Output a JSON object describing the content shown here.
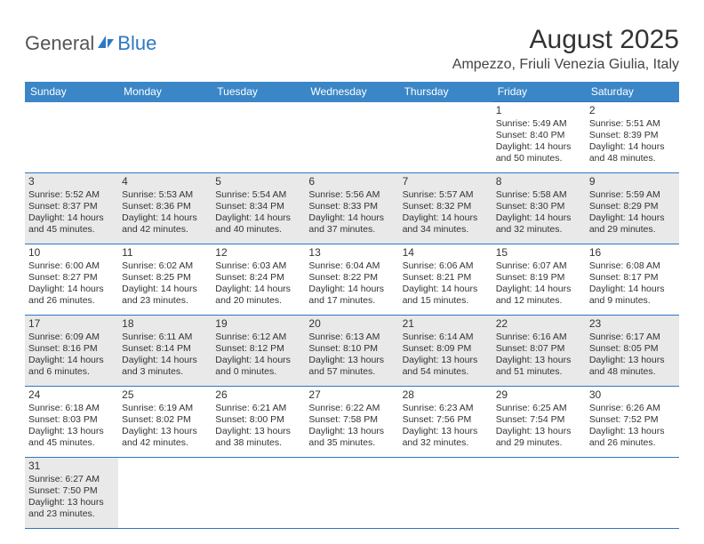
{
  "logo": {
    "general": "General",
    "blue": "Blue"
  },
  "title": "August 2025",
  "location": "Ampezzo, Friuli Venezia Giulia, Italy",
  "colors": {
    "header_bg": "#3b86c6",
    "border": "#2d78c3",
    "shade": "#e9e9e9",
    "text": "#333333"
  },
  "daynames": [
    "Sunday",
    "Monday",
    "Tuesday",
    "Wednesday",
    "Thursday",
    "Friday",
    "Saturday"
  ],
  "weeks": [
    [
      null,
      null,
      null,
      null,
      null,
      {
        "n": "1",
        "sr": "5:49 AM",
        "ss": "8:40 PM",
        "dl": "14 hours and 50 minutes."
      },
      {
        "n": "2",
        "sr": "5:51 AM",
        "ss": "8:39 PM",
        "dl": "14 hours and 48 minutes."
      }
    ],
    [
      {
        "n": "3",
        "sr": "5:52 AM",
        "ss": "8:37 PM",
        "dl": "14 hours and 45 minutes.",
        "shade": true
      },
      {
        "n": "4",
        "sr": "5:53 AM",
        "ss": "8:36 PM",
        "dl": "14 hours and 42 minutes.",
        "shade": true
      },
      {
        "n": "5",
        "sr": "5:54 AM",
        "ss": "8:34 PM",
        "dl": "14 hours and 40 minutes.",
        "shade": true
      },
      {
        "n": "6",
        "sr": "5:56 AM",
        "ss": "8:33 PM",
        "dl": "14 hours and 37 minutes.",
        "shade": true
      },
      {
        "n": "7",
        "sr": "5:57 AM",
        "ss": "8:32 PM",
        "dl": "14 hours and 34 minutes.",
        "shade": true
      },
      {
        "n": "8",
        "sr": "5:58 AM",
        "ss": "8:30 PM",
        "dl": "14 hours and 32 minutes.",
        "shade": true
      },
      {
        "n": "9",
        "sr": "5:59 AM",
        "ss": "8:29 PM",
        "dl": "14 hours and 29 minutes.",
        "shade": true
      }
    ],
    [
      {
        "n": "10",
        "sr": "6:00 AM",
        "ss": "8:27 PM",
        "dl": "14 hours and 26 minutes."
      },
      {
        "n": "11",
        "sr": "6:02 AM",
        "ss": "8:25 PM",
        "dl": "14 hours and 23 minutes."
      },
      {
        "n": "12",
        "sr": "6:03 AM",
        "ss": "8:24 PM",
        "dl": "14 hours and 20 minutes."
      },
      {
        "n": "13",
        "sr": "6:04 AM",
        "ss": "8:22 PM",
        "dl": "14 hours and 17 minutes."
      },
      {
        "n": "14",
        "sr": "6:06 AM",
        "ss": "8:21 PM",
        "dl": "14 hours and 15 minutes."
      },
      {
        "n": "15",
        "sr": "6:07 AM",
        "ss": "8:19 PM",
        "dl": "14 hours and 12 minutes."
      },
      {
        "n": "16",
        "sr": "6:08 AM",
        "ss": "8:17 PM",
        "dl": "14 hours and 9 minutes."
      }
    ],
    [
      {
        "n": "17",
        "sr": "6:09 AM",
        "ss": "8:16 PM",
        "dl": "14 hours and 6 minutes.",
        "shade": true
      },
      {
        "n": "18",
        "sr": "6:11 AM",
        "ss": "8:14 PM",
        "dl": "14 hours and 3 minutes.",
        "shade": true
      },
      {
        "n": "19",
        "sr": "6:12 AM",
        "ss": "8:12 PM",
        "dl": "14 hours and 0 minutes.",
        "shade": true
      },
      {
        "n": "20",
        "sr": "6:13 AM",
        "ss": "8:10 PM",
        "dl": "13 hours and 57 minutes.",
        "shade": true
      },
      {
        "n": "21",
        "sr": "6:14 AM",
        "ss": "8:09 PM",
        "dl": "13 hours and 54 minutes.",
        "shade": true
      },
      {
        "n": "22",
        "sr": "6:16 AM",
        "ss": "8:07 PM",
        "dl": "13 hours and 51 minutes.",
        "shade": true
      },
      {
        "n": "23",
        "sr": "6:17 AM",
        "ss": "8:05 PM",
        "dl": "13 hours and 48 minutes.",
        "shade": true
      }
    ],
    [
      {
        "n": "24",
        "sr": "6:18 AM",
        "ss": "8:03 PM",
        "dl": "13 hours and 45 minutes."
      },
      {
        "n": "25",
        "sr": "6:19 AM",
        "ss": "8:02 PM",
        "dl": "13 hours and 42 minutes."
      },
      {
        "n": "26",
        "sr": "6:21 AM",
        "ss": "8:00 PM",
        "dl": "13 hours and 38 minutes."
      },
      {
        "n": "27",
        "sr": "6:22 AM",
        "ss": "7:58 PM",
        "dl": "13 hours and 35 minutes."
      },
      {
        "n": "28",
        "sr": "6:23 AM",
        "ss": "7:56 PM",
        "dl": "13 hours and 32 minutes."
      },
      {
        "n": "29",
        "sr": "6:25 AM",
        "ss": "7:54 PM",
        "dl": "13 hours and 29 minutes."
      },
      {
        "n": "30",
        "sr": "6:26 AM",
        "ss": "7:52 PM",
        "dl": "13 hours and 26 minutes."
      }
    ],
    [
      {
        "n": "31",
        "sr": "6:27 AM",
        "ss": "7:50 PM",
        "dl": "13 hours and 23 minutes.",
        "shade": true
      },
      null,
      null,
      null,
      null,
      null,
      null
    ]
  ],
  "labels": {
    "sunrise": "Sunrise: ",
    "sunset": "Sunset: ",
    "daylight": "Daylight: "
  }
}
